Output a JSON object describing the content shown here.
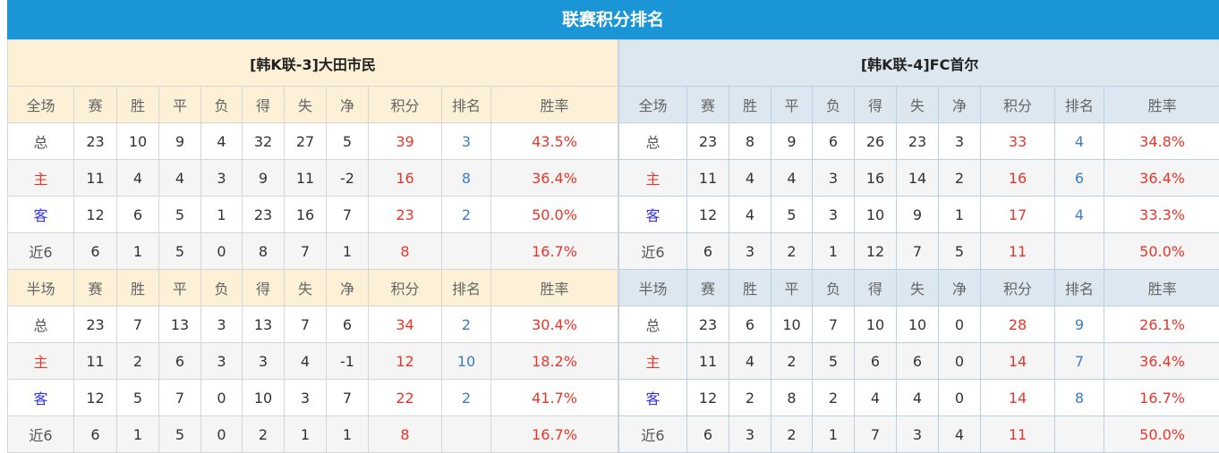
{
  "title": "联赛积分排名",
  "colors": {
    "title_bar": "#1a96d6",
    "points": "#e8362a",
    "rank": "#3b7cc9",
    "home": "#e8362a",
    "away": "#3535e8"
  },
  "panels": [
    {
      "team": "[韩K联-3]大田市民",
      "sections": [
        {
          "header": [
            "全场",
            "赛",
            "胜",
            "平",
            "负",
            "得",
            "失",
            "净",
            "积分",
            "排名",
            "胜率"
          ],
          "rows": [
            [
              "总",
              "23",
              "10",
              "9",
              "4",
              "32",
              "27",
              "5",
              "39",
              "3",
              "43.5%"
            ],
            [
              "主",
              "11",
              "4",
              "4",
              "3",
              "9",
              "11",
              "-2",
              "16",
              "8",
              "36.4%"
            ],
            [
              "客",
              "12",
              "6",
              "5",
              "1",
              "23",
              "16",
              "7",
              "23",
              "2",
              "50.0%"
            ],
            [
              "近6",
              "6",
              "1",
              "5",
              "0",
              "8",
              "7",
              "1",
              "8",
              "",
              "16.7%"
            ]
          ]
        },
        {
          "header": [
            "半场",
            "赛",
            "胜",
            "平",
            "负",
            "得",
            "失",
            "净",
            "积分",
            "排名",
            "胜率"
          ],
          "rows": [
            [
              "总",
              "23",
              "7",
              "13",
              "3",
              "13",
              "7",
              "6",
              "34",
              "2",
              "30.4%"
            ],
            [
              "主",
              "11",
              "2",
              "6",
              "3",
              "3",
              "4",
              "-1",
              "12",
              "10",
              "18.2%"
            ],
            [
              "客",
              "12",
              "5",
              "7",
              "0",
              "10",
              "3",
              "7",
              "22",
              "2",
              "41.7%"
            ],
            [
              "近6",
              "6",
              "1",
              "5",
              "0",
              "2",
              "1",
              "1",
              "8",
              "",
              "16.7%"
            ]
          ]
        }
      ]
    },
    {
      "team": "[韩K联-4]FC首尔",
      "sections": [
        {
          "header": [
            "全场",
            "赛",
            "胜",
            "平",
            "负",
            "得",
            "失",
            "净",
            "积分",
            "排名",
            "胜率"
          ],
          "rows": [
            [
              "总",
              "23",
              "8",
              "9",
              "6",
              "26",
              "23",
              "3",
              "33",
              "4",
              "34.8%"
            ],
            [
              "主",
              "11",
              "4",
              "4",
              "3",
              "16",
              "14",
              "2",
              "16",
              "6",
              "36.4%"
            ],
            [
              "客",
              "12",
              "4",
              "5",
              "3",
              "10",
              "9",
              "1",
              "17",
              "4",
              "33.3%"
            ],
            [
              "近6",
              "6",
              "3",
              "2",
              "1",
              "12",
              "7",
              "5",
              "11",
              "",
              "50.0%"
            ]
          ]
        },
        {
          "header": [
            "半场",
            "赛",
            "胜",
            "平",
            "负",
            "得",
            "失",
            "净",
            "积分",
            "排名",
            "胜率"
          ],
          "rows": [
            [
              "总",
              "23",
              "6",
              "10",
              "7",
              "10",
              "10",
              "0",
              "28",
              "9",
              "26.1%"
            ],
            [
              "主",
              "11",
              "4",
              "2",
              "5",
              "6",
              "6",
              "0",
              "14",
              "7",
              "36.4%"
            ],
            [
              "客",
              "12",
              "2",
              "8",
              "2",
              "4",
              "4",
              "0",
              "14",
              "8",
              "16.7%"
            ],
            [
              "近6",
              "6",
              "3",
              "2",
              "1",
              "7",
              "3",
              "4",
              "11",
              "",
              "50.0%"
            ]
          ]
        }
      ]
    }
  ]
}
